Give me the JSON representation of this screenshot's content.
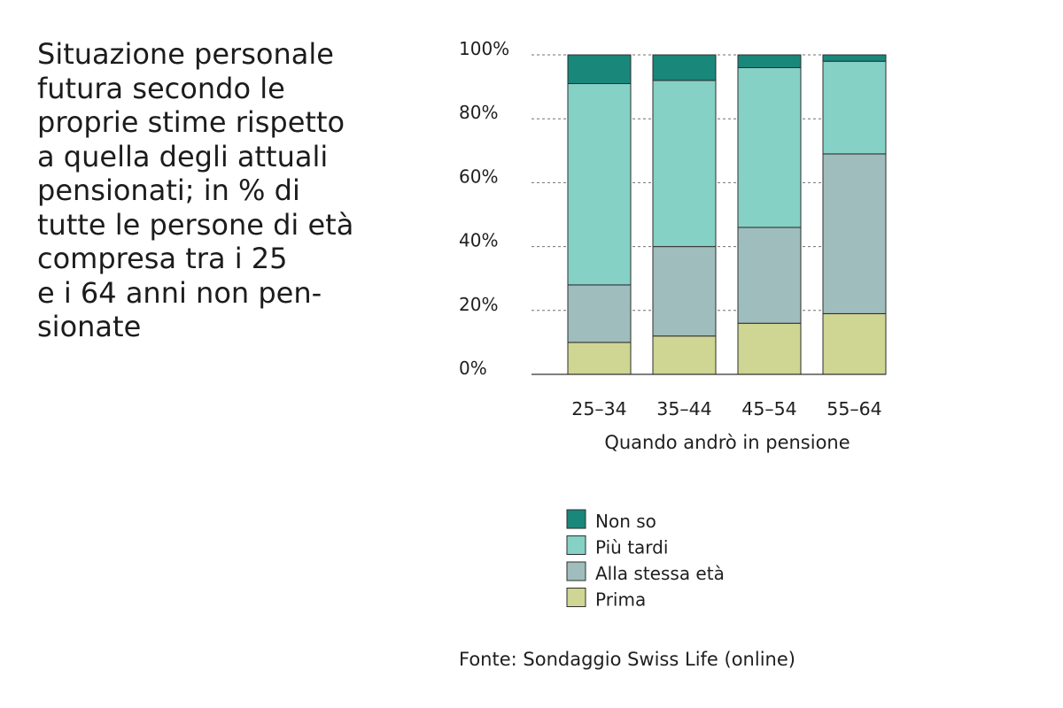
{
  "source": "Fonte: Sondaggio Swiss Life (online)",
  "chart_data": {
    "type": "bar",
    "stacked": true,
    "title": "Situazione personale\nfutura secondo le\nproprie stime rispetto\na quella degli attuali\npensionati; in % di\ntutte le persone di età\ncompresa tra i 25\ne i 64 anni non pen-\nsionate",
    "categories": [
      "25–34",
      "35–44",
      "45–54",
      "55–64"
    ],
    "xlabel": "Quando andrò in pensione",
    "ylim": [
      0,
      100
    ],
    "yticks": [
      0,
      20,
      40,
      60,
      80,
      100
    ],
    "ytick_labels": [
      "0%",
      "20%",
      "40%",
      "60%",
      "80%",
      "100%"
    ],
    "grid": true,
    "legend_position": "bottom",
    "series": [
      {
        "name": "Prima",
        "color": "#cfd592",
        "values": [
          10,
          12,
          16,
          19
        ]
      },
      {
        "name": "Alla stessa età",
        "color": "#9fbdbc",
        "values": [
          18,
          28,
          30,
          50
        ]
      },
      {
        "name": "Più tardi",
        "color": "#85d1c5",
        "values": [
          63,
          52,
          50,
          29
        ]
      },
      {
        "name": "Non so",
        "color": "#1a877b",
        "values": [
          9,
          8,
          4,
          2
        ]
      }
    ]
  }
}
